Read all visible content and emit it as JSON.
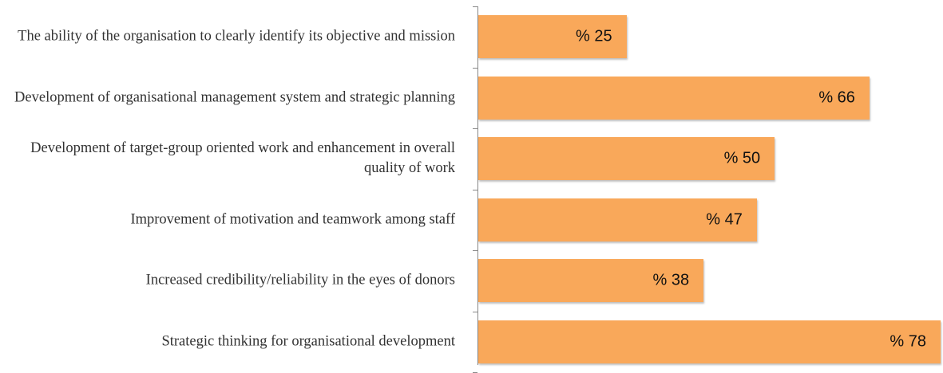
{
  "chart_data": {
    "type": "bar",
    "orientation": "horizontal",
    "categories": [
      "The ability of the organisation to clearly identify its objective and mission",
      "Development of organisational management system and strategic planning",
      "Development of target-group oriented work and enhancement in overall quality of work",
      "Improvement of motivation and teamwork among staff",
      "Increased credibility/reliability in the eyes of donors",
      "Strategic thinking for organisational development"
    ],
    "values": [
      25,
      66,
      50,
      47,
      38,
      78
    ],
    "value_labels": [
      "% 25",
      "% 66",
      "% 50",
      "% 47",
      "% 38",
      "% 78"
    ],
    "color": "#f9a85a",
    "xlim": [
      0,
      78
    ]
  }
}
